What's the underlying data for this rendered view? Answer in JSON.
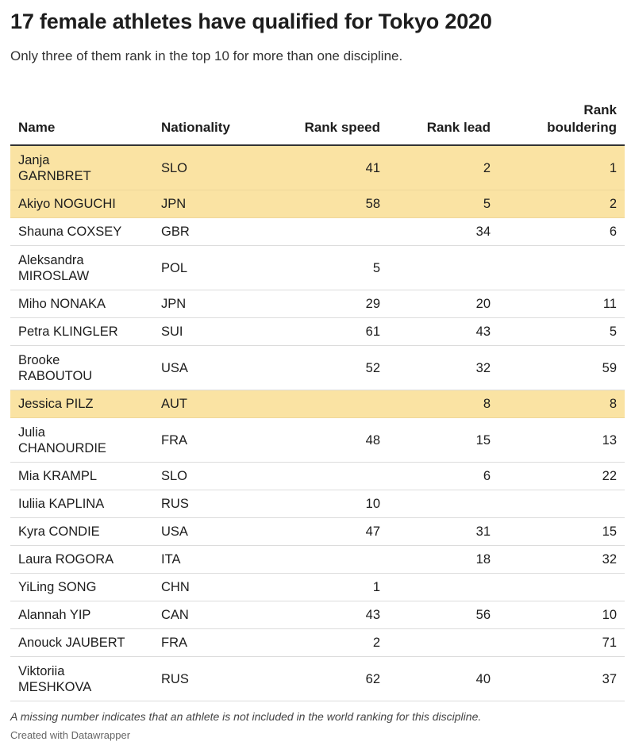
{
  "title": "17 female athletes have qualified for Tokyo 2020",
  "subtitle": "Only three of them rank in the top 10 for more than one discipline.",
  "note": "A missing number indicates that an athlete is not included in the world ranking for this discipline.",
  "credit": "Created with Datawrapper",
  "colors": {
    "highlight": "#fae3a3",
    "header_rule": "#333333",
    "row_rule": "#dcdcdc"
  },
  "chart_data": {
    "type": "table",
    "columns": [
      "Name",
      "Nationality",
      "Rank speed",
      "Rank lead",
      "Rank bouldering"
    ],
    "rows": [
      {
        "name": "Janja GARNBRET",
        "nationality": "SLO",
        "speed": "41",
        "lead": "2",
        "bouldering": "1",
        "highlight": true
      },
      {
        "name": "Akiyo NOGUCHI",
        "nationality": "JPN",
        "speed": "58",
        "lead": "5",
        "bouldering": "2",
        "highlight": true
      },
      {
        "name": "Shauna COXSEY",
        "nationality": "GBR",
        "speed": "",
        "lead": "34",
        "bouldering": "6",
        "highlight": false
      },
      {
        "name": "Aleksandra MIROSLAW",
        "nationality": "POL",
        "speed": "5",
        "lead": "",
        "bouldering": "",
        "highlight": false
      },
      {
        "name": "Miho NONAKA",
        "nationality": "JPN",
        "speed": "29",
        "lead": "20",
        "bouldering": "11",
        "highlight": false
      },
      {
        "name": "Petra KLINGLER",
        "nationality": "SUI",
        "speed": "61",
        "lead": "43",
        "bouldering": "5",
        "highlight": false
      },
      {
        "name": "Brooke RABOUTOU",
        "nationality": "USA",
        "speed": "52",
        "lead": "32",
        "bouldering": "59",
        "highlight": false
      },
      {
        "name": "Jessica PILZ",
        "nationality": "AUT",
        "speed": "",
        "lead": "8",
        "bouldering": "8",
        "highlight": true
      },
      {
        "name": "Julia CHANOURDIE",
        "nationality": "FRA",
        "speed": "48",
        "lead": "15",
        "bouldering": "13",
        "highlight": false
      },
      {
        "name": "Mia KRAMPL",
        "nationality": "SLO",
        "speed": "",
        "lead": "6",
        "bouldering": "22",
        "highlight": false
      },
      {
        "name": "Iuliia KAPLINA",
        "nationality": "RUS",
        "speed": "10",
        "lead": "",
        "bouldering": "",
        "highlight": false
      },
      {
        "name": "Kyra CONDIE",
        "nationality": "USA",
        "speed": "47",
        "lead": "31",
        "bouldering": "15",
        "highlight": false
      },
      {
        "name": "Laura ROGORA",
        "nationality": "ITA",
        "speed": "",
        "lead": "18",
        "bouldering": "32",
        "highlight": false
      },
      {
        "name": "YiLing SONG",
        "nationality": "CHN",
        "speed": "1",
        "lead": "",
        "bouldering": "",
        "highlight": false
      },
      {
        "name": "Alannah YIP",
        "nationality": "CAN",
        "speed": "43",
        "lead": "56",
        "bouldering": "10",
        "highlight": false
      },
      {
        "name": "Anouck JAUBERT",
        "nationality": "FRA",
        "speed": "2",
        "lead": "",
        "bouldering": "71",
        "highlight": false
      },
      {
        "name": "Viktoriia MESHKOVA",
        "nationality": "RUS",
        "speed": "62",
        "lead": "40",
        "bouldering": "37",
        "highlight": false
      }
    ]
  }
}
